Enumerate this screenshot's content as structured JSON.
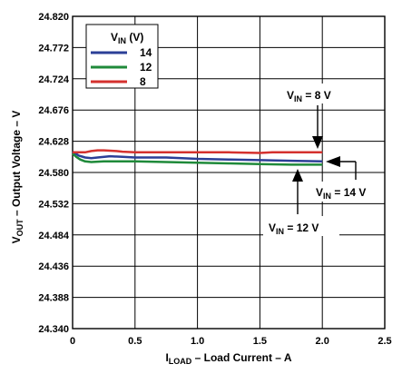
{
  "chart_data": {
    "type": "line",
    "xlim": [
      0,
      2.5
    ],
    "ylim": [
      24.34,
      24.82
    ],
    "x_ticks": [
      "0",
      "0.5",
      "1.0",
      "1.5",
      "2.0",
      "2.5"
    ],
    "y_ticks": [
      "24.820",
      "24.772",
      "24.724",
      "24.676",
      "24.628",
      "24.580",
      "24.532",
      "24.484",
      "24.436",
      "24.388",
      "24.340"
    ],
    "xlabel": {
      "main": "I",
      "sub": "LOAD",
      "rest": " – Load Current – A"
    },
    "ylabel": {
      "main": "V",
      "sub": "OUT",
      "rest": " – Output Voltage – V"
    },
    "grid": true,
    "legend": {
      "title_main": "V",
      "title_sub": "IN",
      "title_rest": " (V)",
      "placement": "top-left"
    },
    "series": [
      {
        "name": "14",
        "color": "#2b3f97",
        "x": [
          0,
          0.05,
          0.1,
          0.15,
          0.2,
          0.3,
          0.4,
          0.5,
          0.75,
          1.0,
          1.25,
          1.5,
          1.75,
          2.0
        ],
        "y": [
          24.612,
          24.606,
          24.603,
          24.602,
          24.603,
          24.605,
          24.604,
          24.603,
          24.603,
          24.601,
          24.6,
          24.599,
          24.598,
          24.597
        ]
      },
      {
        "name": "12",
        "color": "#1f8a3a",
        "x": [
          0,
          0.03,
          0.06,
          0.1,
          0.15,
          0.25,
          0.5,
          0.75,
          1.0,
          1.25,
          1.5,
          1.75,
          2.0
        ],
        "y": [
          24.609,
          24.604,
          24.6,
          24.597,
          24.596,
          24.597,
          24.597,
          24.596,
          24.595,
          24.594,
          24.593,
          24.592,
          24.592
        ]
      },
      {
        "name": "8",
        "color": "#d4312e",
        "x": [
          0,
          0.1,
          0.15,
          0.2,
          0.25,
          0.35,
          0.4,
          0.5,
          0.75,
          1.0,
          1.25,
          1.5,
          1.6,
          1.75,
          2.0
        ],
        "y": [
          24.611,
          24.611,
          24.613,
          24.614,
          24.614,
          24.613,
          24.612,
          24.611,
          24.611,
          24.611,
          24.611,
          24.61,
          24.611,
          24.611,
          24.611
        ]
      }
    ],
    "annotations": [
      {
        "main": "V",
        "sub": "IN",
        "rest": " = 8 V"
      },
      {
        "main": "V",
        "sub": "IN",
        "rest": " = 14 V"
      },
      {
        "main": "V",
        "sub": "IN",
        "rest": " = 12 V"
      }
    ]
  }
}
